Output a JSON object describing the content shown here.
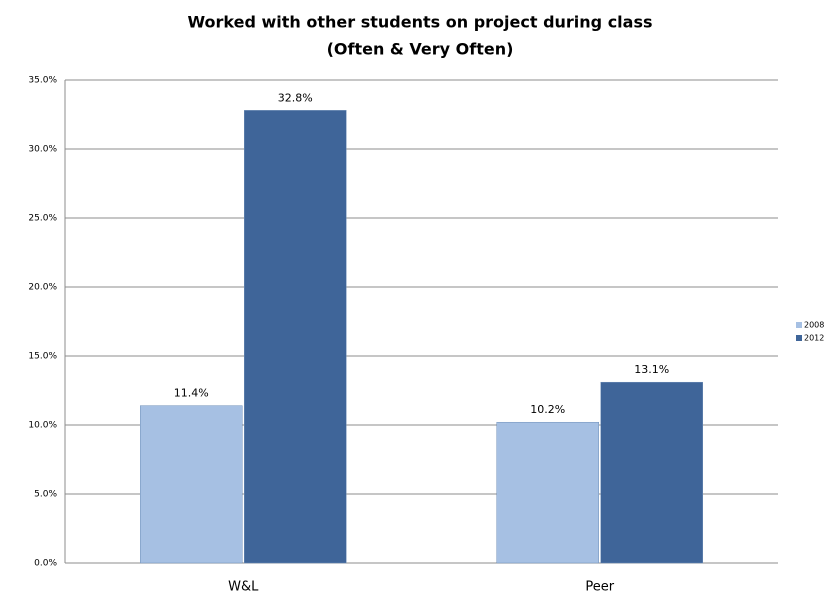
{
  "chart_data": {
    "type": "bar",
    "title": "Worked with other students on project during class",
    "subtitle": "(Often & Very Often)",
    "categories": [
      "W&L",
      "Peer"
    ],
    "series": [
      {
        "name": "2008",
        "color": "#a6c0e3",
        "values": [
          11.4,
          10.2
        ],
        "value_labels": [
          "11.4%",
          "10.2%"
        ]
      },
      {
        "name": "2012",
        "color": "#3f6599",
        "values": [
          32.8,
          13.1
        ],
        "value_labels": [
          "32.8%",
          "13.1%"
        ]
      }
    ],
    "ylim": [
      0,
      35
    ],
    "yticks": [
      {
        "value": 0,
        "label": "0.0%"
      },
      {
        "value": 5,
        "label": "5.0%"
      },
      {
        "value": 10,
        "label": "10.0%"
      },
      {
        "value": 15,
        "label": "15.0%"
      },
      {
        "value": 20,
        "label": "20.0%"
      },
      {
        "value": 25,
        "label": "25.0%"
      },
      {
        "value": 30,
        "label": "30.0%"
      },
      {
        "value": 35,
        "label": "35.0%"
      }
    ],
    "grid": true,
    "legend": "right"
  }
}
